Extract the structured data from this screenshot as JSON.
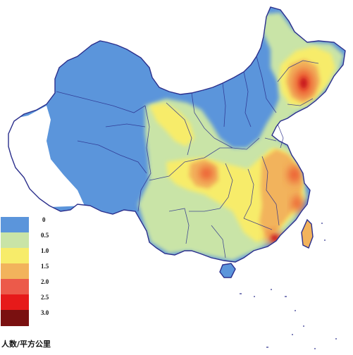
{
  "map": {
    "colors": {
      "ocean": "#ffffff",
      "outside": "#ffffff",
      "border": "#2b2f8c",
      "low": "#5b95db",
      "mid_low": "#c9e4a7",
      "mid": "#f7ec6a",
      "mid_high": "#f2b35c",
      "high": "#ec5a33",
      "peak": "#c8151b"
    }
  },
  "legend": {
    "items": [
      {
        "label": "0",
        "color": "#5b95db"
      },
      {
        "label": "0.5",
        "color": "#c9e4a7"
      },
      {
        "label": "1.0",
        "color": "#f7ec6a"
      },
      {
        "label": "1.5",
        "color": "#f2b35c"
      },
      {
        "label": "2.0",
        "color": "#ec5a4a"
      },
      {
        "label": "2.5",
        "color": "#e61a1a"
      },
      {
        "label": "3.0",
        "color": "#7a1010"
      }
    ],
    "unit": "人数/平方公里"
  }
}
